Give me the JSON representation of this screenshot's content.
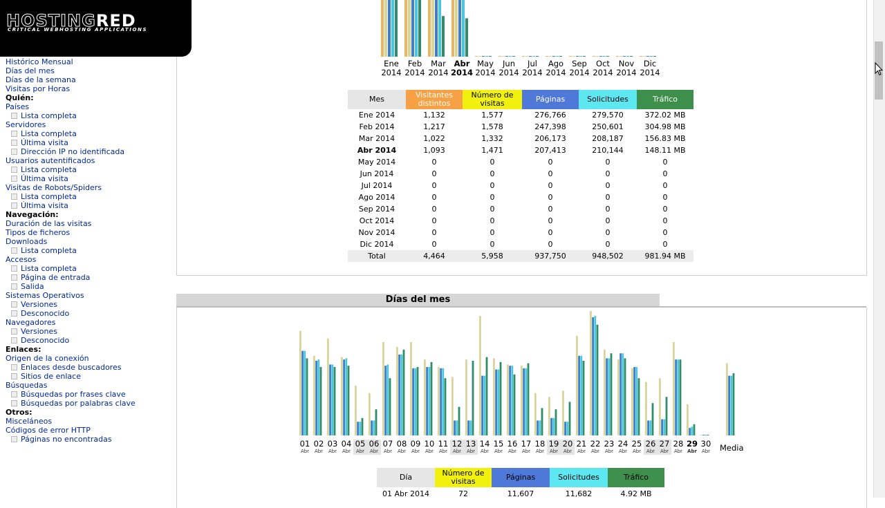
{
  "logo": {
    "main_a": "HOSTING",
    "main_b": "RED",
    "sub": "CRITICAL WEBHOSTING APPLICATIONS"
  },
  "sidebar": [
    {
      "type": "link",
      "label": "Histórico Mensual"
    },
    {
      "type": "link",
      "label": "Días del mes"
    },
    {
      "type": "link",
      "label": "Días de la semana"
    },
    {
      "type": "link",
      "label": "Visitas por Horas"
    },
    {
      "type": "header",
      "label": "Quién:"
    },
    {
      "type": "link",
      "label": "Países"
    },
    {
      "type": "sub",
      "label": "Lista completa"
    },
    {
      "type": "link",
      "label": "Servidores"
    },
    {
      "type": "sub",
      "label": "Lista completa"
    },
    {
      "type": "sub",
      "label": "Última visita"
    },
    {
      "type": "sub",
      "label": "Dirección IP no identificada"
    },
    {
      "type": "link",
      "label": "Usuarios autentificados"
    },
    {
      "type": "sub",
      "label": "Lista completa"
    },
    {
      "type": "sub",
      "label": "Última visita"
    },
    {
      "type": "link",
      "label": "Visitas de Robots/Spiders"
    },
    {
      "type": "sub",
      "label": "Lista completa"
    },
    {
      "type": "sub",
      "label": "Última visita"
    },
    {
      "type": "header",
      "label": "Navegación:"
    },
    {
      "type": "link",
      "label": "Duración de las visitas"
    },
    {
      "type": "link",
      "label": "Tipos de ficheros"
    },
    {
      "type": "link",
      "label": "Downloads"
    },
    {
      "type": "sub",
      "label": "Lista completa"
    },
    {
      "type": "link",
      "label": "Accesos"
    },
    {
      "type": "sub",
      "label": "Lista completa"
    },
    {
      "type": "sub",
      "label": "Página de entrada"
    },
    {
      "type": "sub",
      "label": "Salida"
    },
    {
      "type": "link",
      "label": "Sistemas Operativos"
    },
    {
      "type": "sub",
      "label": "Versiones"
    },
    {
      "type": "sub",
      "label": "Desconocido"
    },
    {
      "type": "link",
      "label": "Navegadores"
    },
    {
      "type": "sub",
      "label": "Versiones"
    },
    {
      "type": "sub",
      "label": "Desconocido"
    },
    {
      "type": "header",
      "label": "Enlaces:"
    },
    {
      "type": "link",
      "label": "Origen de la conexión"
    },
    {
      "type": "sub",
      "label": "Enlaces desde buscadores"
    },
    {
      "type": "sub",
      "label": "Sitios de enlace"
    },
    {
      "type": "link",
      "label": "Búsquedas"
    },
    {
      "type": "sub",
      "label": "Búsquedas por frases clave"
    },
    {
      "type": "sub",
      "label": "Búsquedas por palabras clave"
    },
    {
      "type": "header",
      "label": "Otros:"
    },
    {
      "type": "link",
      "label": "Misceláneos"
    },
    {
      "type": "link",
      "label": "Códigos de error HTTP"
    },
    {
      "type": "sub",
      "label": "Páginas no encontradas"
    }
  ],
  "colors": {
    "visitantes": "#f8a144",
    "numero": "#f1f10d",
    "paginas": "#4e79d8",
    "solicitudes": "#5de8f1",
    "trafico": "#3f8f4c",
    "mes_head": "#e6e6e6",
    "bar_visitantes": "#f0b45e",
    "bar_numero": "#d9d59a",
    "bar_paginas": "#3d7fcf",
    "bar_solicitudes": "#4cc4dc",
    "bar_trafico": "#2f8e6a"
  },
  "monthly": {
    "headers": [
      "Mes",
      "Visitantes distintos",
      "Número de visitas",
      "Páginas",
      "Solicitudes",
      "Tráfico"
    ],
    "rows": [
      {
        "mes": "Ene 2014",
        "vis": "1,132",
        "num": "1,577",
        "pag": "276,766",
        "sol": "279,570",
        "tra": "372.02 MB"
      },
      {
        "mes": "Feb 2014",
        "vis": "1,217",
        "num": "1,578",
        "pag": "247,398",
        "sol": "250,601",
        "tra": "304.98 MB"
      },
      {
        "mes": "Mar 2014",
        "vis": "1,022",
        "num": "1,332",
        "pag": "206,173",
        "sol": "208,187",
        "tra": "156.83 MB"
      },
      {
        "mes": "Abr 2014",
        "vis": "1,093",
        "num": "1,471",
        "pag": "207,413",
        "sol": "210,144",
        "tra": "148.11 MB",
        "current": true
      },
      {
        "mes": "May 2014",
        "vis": "0",
        "num": "0",
        "pag": "0",
        "sol": "0",
        "tra": "0"
      },
      {
        "mes": "Jun 2014",
        "vis": "0",
        "num": "0",
        "pag": "0",
        "sol": "0",
        "tra": "0"
      },
      {
        "mes": "Jul 2014",
        "vis": "0",
        "num": "0",
        "pag": "0",
        "sol": "0",
        "tra": "0"
      },
      {
        "mes": "Ago 2014",
        "vis": "0",
        "num": "0",
        "pag": "0",
        "sol": "0",
        "tra": "0"
      },
      {
        "mes": "Sep 2014",
        "vis": "0",
        "num": "0",
        "pag": "0",
        "sol": "0",
        "tra": "0"
      },
      {
        "mes": "Oct 2014",
        "vis": "0",
        "num": "0",
        "pag": "0",
        "sol": "0",
        "tra": "0"
      },
      {
        "mes": "Nov 2014",
        "vis": "0",
        "num": "0",
        "pag": "0",
        "sol": "0",
        "tra": "0"
      },
      {
        "mes": "Dic 2014",
        "vis": "0",
        "num": "0",
        "pag": "0",
        "sol": "0",
        "tra": "0"
      }
    ],
    "total": {
      "mes": "Total",
      "vis": "4,464",
      "num": "5,958",
      "pag": "937,750",
      "sol": "948,502",
      "tra": "981.94 MB"
    },
    "chart_labels": [
      {
        "m": "Ene",
        "y": "2014"
      },
      {
        "m": "Feb",
        "y": "2014"
      },
      {
        "m": "Mar",
        "y": "2014"
      },
      {
        "m": "Abr",
        "y": "2014",
        "current": true
      },
      {
        "m": "May",
        "y": "2014"
      },
      {
        "m": "Jun",
        "y": "2014"
      },
      {
        "m": "Jul",
        "y": "2014"
      },
      {
        "m": "Ago",
        "y": "2014"
      },
      {
        "m": "Sep",
        "y": "2014"
      },
      {
        "m": "Oct",
        "y": "2014"
      },
      {
        "m": "Nov",
        "y": "2014"
      },
      {
        "m": "Dic",
        "y": "2014"
      }
    ]
  },
  "days_section": {
    "title": "Días del mes",
    "media_label": "Media",
    "month_abbr": "Abr",
    "days": [
      {
        "d": "01",
        "num": 84,
        "pag": 68,
        "sol": 68,
        "tra": 62
      },
      {
        "d": "02",
        "num": 64,
        "pag": 60,
        "sol": 61,
        "tra": 55
      },
      {
        "d": "03",
        "num": 78,
        "pag": 57,
        "sol": 57,
        "tra": 55
      },
      {
        "d": "04",
        "num": 63,
        "pag": 61,
        "sol": 62,
        "tra": 56
      },
      {
        "d": "05",
        "num": 40,
        "pag": 11,
        "sol": 11,
        "tra": 14,
        "weekend": true
      },
      {
        "d": "06",
        "num": 34,
        "pag": 12,
        "sol": 12,
        "tra": 21,
        "weekend": true
      },
      {
        "d": "07",
        "num": 75,
        "pag": 56,
        "sol": 57,
        "tra": 46
      },
      {
        "d": "08",
        "num": 71,
        "pag": 65,
        "sol": 65,
        "tra": 69
      },
      {
        "d": "09",
        "num": 75,
        "pag": 54,
        "sol": 54,
        "tra": 55
      },
      {
        "d": "10",
        "num": 61,
        "pag": 55,
        "sol": 55,
        "tra": 59
      },
      {
        "d": "11",
        "num": 55,
        "pag": 54,
        "sol": 54,
        "tra": 46
      },
      {
        "d": "12",
        "num": 47,
        "pag": 12,
        "sol": 12,
        "tra": 23,
        "weekend": true
      },
      {
        "d": "13",
        "num": 61,
        "pag": 12,
        "sol": 12,
        "tra": 60,
        "weekend": true
      },
      {
        "d": "14",
        "num": 96,
        "pag": 48,
        "sol": 48,
        "tra": 63
      },
      {
        "d": "15",
        "num": 62,
        "pag": 53,
        "sol": 53,
        "tra": 59
      },
      {
        "d": "16",
        "num": 57,
        "pag": 56,
        "sol": 56,
        "tra": 49
      },
      {
        "d": "17",
        "num": 56,
        "pag": 54,
        "sol": 54,
        "tra": 58
      },
      {
        "d": "18",
        "num": 34,
        "pag": 12,
        "sol": 12,
        "tra": 22
      },
      {
        "d": "19",
        "num": 31,
        "pag": 14,
        "sol": 14,
        "tra": 21,
        "weekend": true
      },
      {
        "d": "20",
        "num": 36,
        "pag": 11,
        "sol": 11,
        "tra": 27,
        "weekend": true
      },
      {
        "d": "21",
        "num": 80,
        "pag": 64,
        "sol": 64,
        "tra": 60
      },
      {
        "d": "22",
        "num": 100,
        "pag": 95,
        "sol": 96,
        "tra": 89
      },
      {
        "d": "23",
        "num": 69,
        "pag": 62,
        "sol": 62,
        "tra": 66
      },
      {
        "d": "24",
        "num": 61,
        "pag": 66,
        "sol": 66,
        "tra": 62
      },
      {
        "d": "25",
        "num": 54,
        "pag": 55,
        "sol": 55,
        "tra": 46
      },
      {
        "d": "26",
        "num": 43,
        "pag": 12,
        "sol": 12,
        "tra": 26,
        "weekend": true
      },
      {
        "d": "27",
        "num": 46,
        "pag": 13,
        "sol": 13,
        "tra": 31,
        "weekend": true
      },
      {
        "d": "28",
        "num": 75,
        "pag": 61,
        "sol": 61,
        "tra": 61
      },
      {
        "d": "29",
        "num": 25,
        "pag": 6,
        "sol": 7,
        "tra": 9,
        "current": true
      },
      {
        "d": "30",
        "num": 0,
        "pag": 0,
        "sol": 0,
        "tra": 0
      }
    ],
    "media": {
      "num": 58,
      "pag": 48,
      "sol": 48,
      "tra": 50
    }
  },
  "days_table": {
    "headers": [
      "Día",
      "Número de visitas",
      "Páginas",
      "Solicitudes",
      "Tráfico"
    ],
    "rows": [
      {
        "dia": "01 Abr 2014",
        "num": "72",
        "pag": "11,607",
        "sol": "11,682",
        "tra": "4.92 MB"
      }
    ]
  }
}
